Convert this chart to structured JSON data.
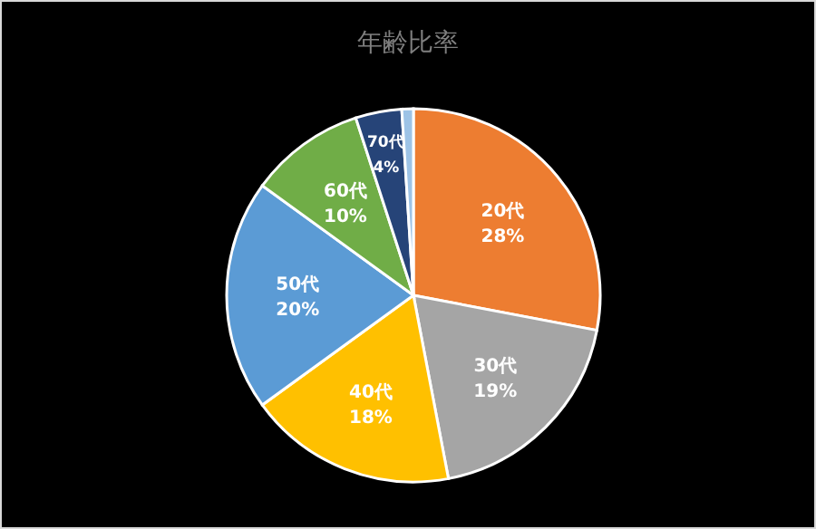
{
  "chart_data": {
    "type": "pie",
    "title": "年齢比率",
    "categories": [
      "20代",
      "30代",
      "40代",
      "50代",
      "60代",
      "70代",
      null
    ],
    "values": [
      28,
      19,
      18,
      20,
      10,
      4,
      1
    ],
    "value_labels": [
      "28%",
      "19%",
      "18%",
      "20%",
      "10%",
      "4%",
      null
    ],
    "colors": [
      "#ed7d31",
      "#a5a5a5",
      "#ffc000",
      "#5b9bd5",
      "#70ad47",
      "#264478",
      "#9dc3e6"
    ]
  }
}
